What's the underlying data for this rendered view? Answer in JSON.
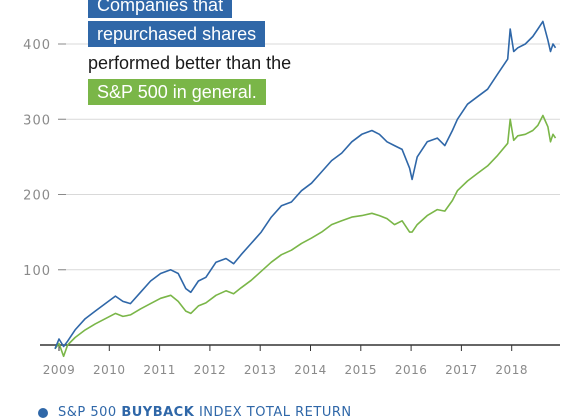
{
  "annotation": {
    "line1": "Companies that",
    "line2": "repurchased shares",
    "line3": "performed better than the",
    "line4": "S&P 500 in general."
  },
  "legend": {
    "prefix": "S&P 500",
    "bold": "BUYBACK",
    "suffix": "INDEX TOTAL RETURN",
    "color": "#2f67a8"
  },
  "colors": {
    "buyback": "#2f67a8",
    "sp500": "#7ab648",
    "grid": "#d9d9d9",
    "axis": "#333333"
  },
  "chart_data": {
    "type": "line",
    "title": "",
    "xlabel": "",
    "ylabel": "",
    "xlim": [
      2009.0,
      2018.95
    ],
    "ylim": [
      -10,
      430
    ],
    "yticks": [
      100,
      200,
      300,
      400
    ],
    "xticks": [
      2009,
      2010,
      2011,
      2012,
      2013,
      2014,
      2015,
      2016,
      2017,
      2018
    ],
    "grid": "horizontal",
    "series": [
      {
        "name": "S&P 500 BUYBACK INDEX TOTAL RETURN",
        "color": "#2f67a8",
        "x": [
          2009.0,
          2009.08,
          2009.17,
          2009.25,
          2009.4,
          2009.6,
          2009.8,
          2010.0,
          2010.2,
          2010.35,
          2010.5,
          2010.7,
          2010.9,
          2011.1,
          2011.3,
          2011.45,
          2011.6,
          2011.7,
          2011.85,
          2012.0,
          2012.2,
          2012.4,
          2012.55,
          2012.7,
          2012.9,
          2013.1,
          2013.3,
          2013.5,
          2013.7,
          2013.9,
          2014.1,
          2014.3,
          2014.5,
          2014.7,
          2014.9,
          2015.1,
          2015.3,
          2015.45,
          2015.6,
          2015.75,
          2015.9,
          2016.05,
          2016.1,
          2016.2,
          2016.4,
          2016.6,
          2016.75,
          2016.9,
          2017.0,
          2017.2,
          2017.4,
          2017.6,
          2017.8,
          2018.0,
          2018.05,
          2018.12,
          2018.2,
          2018.35,
          2018.5,
          2018.6,
          2018.7,
          2018.8,
          2018.85,
          2018.9,
          2018.95
        ],
        "values": [
          -5,
          8,
          -2,
          5,
          20,
          35,
          45,
          55,
          65,
          58,
          55,
          70,
          85,
          95,
          100,
          95,
          75,
          70,
          85,
          90,
          110,
          115,
          108,
          120,
          135,
          150,
          170,
          185,
          190,
          205,
          215,
          230,
          245,
          255,
          270,
          280,
          285,
          280,
          270,
          265,
          260,
          235,
          220,
          250,
          270,
          275,
          265,
          285,
          300,
          320,
          330,
          340,
          360,
          380,
          420,
          390,
          395,
          400,
          410,
          420,
          430,
          405,
          390,
          400,
          395
        ]
      },
      {
        "name": "S&P 500",
        "color": "#7ab648",
        "x": [
          2009.0,
          2009.08,
          2009.17,
          2009.25,
          2009.4,
          2009.6,
          2009.8,
          2010.0,
          2010.2,
          2010.35,
          2010.5,
          2010.7,
          2010.9,
          2011.1,
          2011.3,
          2011.45,
          2011.6,
          2011.7,
          2011.85,
          2012.0,
          2012.2,
          2012.4,
          2012.55,
          2012.7,
          2012.9,
          2013.1,
          2013.3,
          2013.5,
          2013.7,
          2013.9,
          2014.1,
          2014.3,
          2014.5,
          2014.7,
          2014.9,
          2015.1,
          2015.3,
          2015.45,
          2015.6,
          2015.75,
          2015.9,
          2016.05,
          2016.1,
          2016.2,
          2016.4,
          2016.6,
          2016.75,
          2016.9,
          2017.0,
          2017.2,
          2017.4,
          2017.6,
          2017.8,
          2018.0,
          2018.05,
          2018.12,
          2018.2,
          2018.35,
          2018.5,
          2018.6,
          2018.7,
          2018.8,
          2018.85,
          2018.9,
          2018.95
        ],
        "values": [
          -5,
          2,
          -15,
          0,
          10,
          20,
          28,
          35,
          42,
          38,
          40,
          48,
          55,
          62,
          66,
          58,
          45,
          42,
          52,
          56,
          66,
          72,
          68,
          76,
          86,
          98,
          110,
          120,
          126,
          135,
          142,
          150,
          160,
          165,
          170,
          172,
          175,
          172,
          168,
          160,
          165,
          150,
          150,
          160,
          172,
          180,
          178,
          192,
          205,
          218,
          228,
          238,
          252,
          268,
          300,
          272,
          278,
          280,
          285,
          292,
          305,
          290,
          270,
          280,
          275
        ]
      }
    ]
  }
}
